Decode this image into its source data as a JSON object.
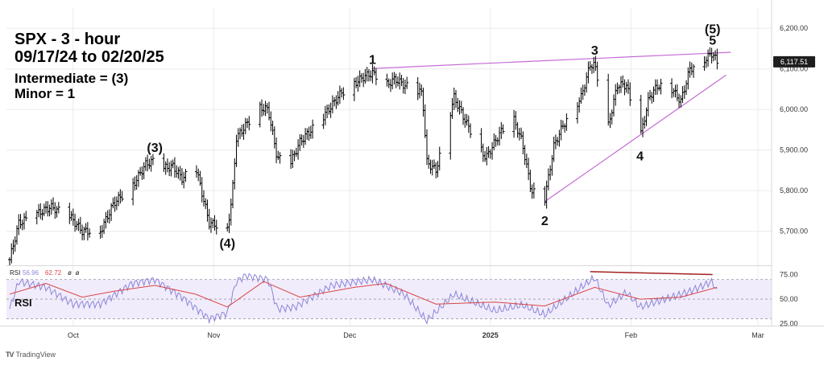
{
  "header": {
    "title_line1": "SPX - 3 - hour",
    "title_line2": "09/17/24 to 02/20/25",
    "legend_line1": "Intermediate = (3)",
    "legend_line2": "Minor = 1"
  },
  "branding": {
    "logo_text": "TradingView"
  },
  "colors": {
    "up": "#000000",
    "trendline": "#c56bd6",
    "rsi_line": "#8a86d8",
    "rsi_ma": "#d94545",
    "rsi_band": "#f1ecfb",
    "divergence": "#a52020",
    "price_label_bg": "#1e1e1e"
  },
  "chart_data": [
    {
      "type": "bar",
      "title": "",
      "x_ticks": [
        {
          "label": "Oct",
          "date": "2024-10-01"
        },
        {
          "label": "Nov",
          "date": "2024-11-01"
        },
        {
          "label": "Dec",
          "date": "2024-12-01"
        },
        {
          "label": "2025",
          "date": "2025-01-01"
        },
        {
          "label": "Feb",
          "date": "2025-02-01"
        },
        {
          "label": "Mar",
          "date": "2025-03-01"
        }
      ],
      "y_ticks": [
        "6,200.00",
        "6,100.00",
        "6,000.00",
        "5,900.00",
        "5,800.00",
        "5,700.00"
      ],
      "ylim": [
        5620,
        6250
      ],
      "last_price": "6,117.51",
      "price_path": [
        [
          "2024-09-17",
          5630
        ],
        [
          "2024-09-19",
          5720
        ],
        [
          "2024-09-26",
          5760
        ],
        [
          "2024-09-30",
          5740
        ],
        [
          "2024-10-03",
          5700
        ],
        [
          "2024-10-07",
          5700
        ],
        [
          "2024-10-10",
          5770
        ],
        [
          "2024-10-14",
          5810
        ],
        [
          "2024-10-17",
          5865
        ],
        [
          "2024-10-19",
          5875
        ],
        [
          "2024-10-21",
          5855
        ],
        [
          "2024-10-23",
          5860
        ],
        [
          "2024-10-25",
          5830
        ],
        [
          "2024-10-28",
          5860
        ],
        [
          "2024-10-31",
          5720
        ],
        [
          "2024-11-04",
          5708
        ],
        [
          "2024-11-05",
          5780
        ],
        [
          "2024-11-06",
          5930
        ],
        [
          "2024-11-11",
          6005
        ],
        [
          "2024-11-13",
          6000
        ],
        [
          "2024-11-15",
          5880
        ],
        [
          "2024-11-18",
          5870
        ],
        [
          "2024-11-20",
          5920
        ],
        [
          "2024-11-25",
          5980
        ],
        [
          "2024-11-29",
          6040
        ],
        [
          "2024-12-04",
          6080
        ],
        [
          "2024-12-06",
          6090
        ],
        [
          "2024-12-09",
          6060
        ],
        [
          "2024-12-11",
          6075
        ],
        [
          "2024-12-13",
          6060
        ],
        [
          "2024-12-17",
          6040
        ],
        [
          "2024-12-18",
          5870
        ],
        [
          "2024-12-20",
          5850
        ],
        [
          "2024-12-24",
          6030
        ],
        [
          "2024-12-27",
          5960
        ],
        [
          "2024-12-31",
          5880
        ],
        [
          "2025-01-03",
          5940
        ],
        [
          "2025-01-06",
          5980
        ],
        [
          "2025-01-08",
          5920
        ],
        [
          "2025-01-10",
          5800
        ],
        [
          "2025-01-13",
          5780
        ],
        [
          "2025-01-15",
          5910
        ],
        [
          "2025-01-17",
          5960
        ],
        [
          "2025-01-21",
          6030
        ],
        [
          "2025-01-23",
          6110
        ],
        [
          "2025-01-24",
          6110
        ],
        [
          "2025-01-27",
          5960
        ],
        [
          "2025-01-29",
          6060
        ],
        [
          "2025-01-31",
          6060
        ],
        [
          "2025-02-03",
          5930
        ],
        [
          "2025-02-05",
          6030
        ],
        [
          "2025-02-07",
          6060
        ],
        [
          "2025-02-10",
          6050
        ],
        [
          "2025-02-12",
          6020
        ],
        [
          "2025-02-14",
          6100
        ],
        [
          "2025-02-17",
          6120
        ],
        [
          "2025-02-19",
          6140
        ],
        [
          "2025-02-20",
          6115
        ]
      ],
      "trendlines": [
        {
          "from": [
            "2024-12-06",
            6101
          ],
          "to": [
            "2025-02-23",
            6141
          ]
        },
        {
          "from": [
            "2025-01-13",
            5773
          ],
          "to": [
            "2025-02-22",
            6085
          ]
        }
      ],
      "annotations": [
        {
          "label": "(3)",
          "date": "2024-10-19",
          "price": 5895
        },
        {
          "label": "(4)",
          "date": "2024-11-04",
          "price": 5660
        },
        {
          "label": "1",
          "date": "2024-12-06",
          "price": 6112
        },
        {
          "label": "2",
          "date": "2025-01-13",
          "price": 5715
        },
        {
          "label": "3",
          "date": "2025-01-24",
          "price": 6135
        },
        {
          "label": "4",
          "date": "2025-02-03",
          "price": 5875
        },
        {
          "label": "(5)",
          "date": "2025-02-19",
          "price": 6188
        },
        {
          "label": "5",
          "date": "2025-02-19",
          "price": 6160
        }
      ]
    },
    {
      "type": "line",
      "title": "RSI",
      "header_label": "RSI",
      "header_values": [
        "56.96",
        "62.72",
        "ø",
        "ø"
      ],
      "y_ticks": [
        "75.00",
        "50.00",
        "25.00"
      ],
      "ylim": [
        23,
        82
      ],
      "bands": [
        30,
        70
      ],
      "rsi_path": [
        [
          "2024-09-17",
          40
        ],
        [
          "2024-09-19",
          68
        ],
        [
          "2024-09-25",
          62
        ],
        [
          "2024-10-01",
          45
        ],
        [
          "2024-10-07",
          45
        ],
        [
          "2024-10-14",
          66
        ],
        [
          "2024-10-19",
          70
        ],
        [
          "2024-10-25",
          52
        ],
        [
          "2024-10-31",
          30
        ],
        [
          "2024-11-04",
          36
        ],
        [
          "2024-11-06",
          68
        ],
        [
          "2024-11-08",
          74
        ],
        [
          "2024-11-13",
          70
        ],
        [
          "2024-11-15",
          40
        ],
        [
          "2024-11-19",
          42
        ],
        [
          "2024-11-27",
          64
        ],
        [
          "2024-12-06",
          70
        ],
        [
          "2024-12-13",
          55
        ],
        [
          "2024-12-18",
          28
        ],
        [
          "2024-12-24",
          55
        ],
        [
          "2025-01-02",
          38
        ],
        [
          "2025-01-08",
          44
        ],
        [
          "2025-01-13",
          34
        ],
        [
          "2025-01-21",
          62
        ],
        [
          "2025-01-24",
          72
        ],
        [
          "2025-01-27",
          43
        ],
        [
          "2025-01-31",
          57
        ],
        [
          "2025-02-03",
          42
        ],
        [
          "2025-02-10",
          52
        ],
        [
          "2025-02-14",
          58
        ],
        [
          "2025-02-19",
          68
        ],
        [
          "2025-02-20",
          57
        ]
      ],
      "rsi_ma_path": [
        [
          "2024-09-17",
          55
        ],
        [
          "2024-09-25",
          66
        ],
        [
          "2024-10-03",
          52
        ],
        [
          "2024-10-10",
          58
        ],
        [
          "2024-10-19",
          64
        ],
        [
          "2024-10-28",
          55
        ],
        [
          "2024-11-04",
          42
        ],
        [
          "2024-11-12",
          68
        ],
        [
          "2024-11-20",
          52
        ],
        [
          "2024-12-02",
          62
        ],
        [
          "2024-12-09",
          66
        ],
        [
          "2024-12-20",
          45
        ],
        [
          "2025-01-02",
          47
        ],
        [
          "2025-01-13",
          43
        ],
        [
          "2025-01-24",
          62
        ],
        [
          "2025-02-03",
          50
        ],
        [
          "2025-02-12",
          52
        ],
        [
          "2025-02-20",
          62
        ]
      ],
      "divergence_line": {
        "from": [
          "2025-01-23",
          78
        ],
        "to": [
          "2025-02-19",
          75
        ]
      }
    }
  ]
}
